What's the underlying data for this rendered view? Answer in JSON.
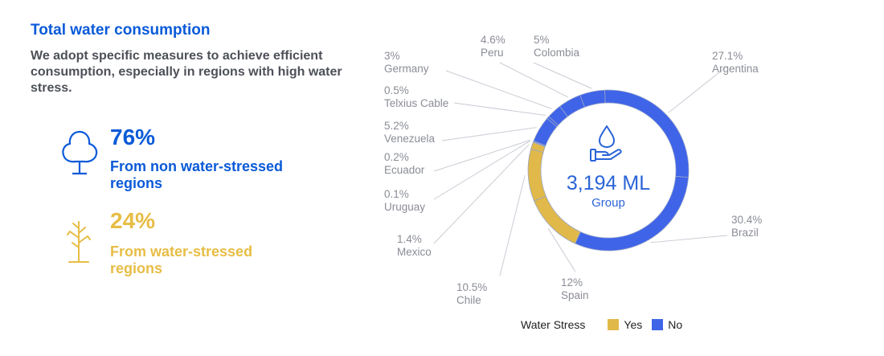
{
  "header": {
    "title": "Total water consumption",
    "subtitle": "We adopt specific measures to achieve efficient consumption, especially in regions with high water stress."
  },
  "stats": [
    {
      "value": "76%",
      "label": "From non water-stressed regions",
      "icon": "tree-icon",
      "color": "#0a5ad8"
    },
    {
      "value": "24%",
      "label": "From water-stressed regions",
      "icon": "dry-tree-icon",
      "color": "#e7bd45"
    }
  ],
  "chart_data": {
    "type": "donut",
    "center_value": "3,194 ML",
    "center_label": "Group",
    "center_icon": "water-drop-hand-icon",
    "series_colors": {
      "Yes": "#e0b94a",
      "No": "#3f64e8"
    },
    "slices": [
      {
        "country": "Brazil",
        "pct_label": "30.4%",
        "value": 30.4,
        "water_stress": "No"
      },
      {
        "country": "Spain",
        "pct_label": "12%",
        "value": 12,
        "water_stress": "Yes"
      },
      {
        "country": "Chile",
        "pct_label": "10.5%",
        "value": 10.5,
        "water_stress": "Yes"
      },
      {
        "country": "Mexico",
        "pct_label": "1.4%",
        "value": 1.4,
        "water_stress": "Yes"
      },
      {
        "country": "Uruguay",
        "pct_label": "0.1%",
        "value": 0.1,
        "water_stress": "No"
      },
      {
        "country": "Ecuador",
        "pct_label": "0.2%",
        "value": 0.2,
        "water_stress": "No"
      },
      {
        "country": "Venezuela",
        "pct_label": "5.2%",
        "value": 5.2,
        "water_stress": "No"
      },
      {
        "country": "Telxius Cable",
        "pct_label": "0.5%",
        "value": 0.5,
        "water_stress": "No"
      },
      {
        "country": "Germany",
        "pct_label": "3%",
        "value": 3,
        "water_stress": "No"
      },
      {
        "country": "Peru",
        "pct_label": "4.6%",
        "value": 4.6,
        "water_stress": "No"
      },
      {
        "country": "Colombia",
        "pct_label": "5%",
        "value": 5,
        "water_stress": "No"
      },
      {
        "country": "Argentina",
        "pct_label": "27.1%",
        "value": 27.1,
        "water_stress": "No"
      }
    ],
    "legend": {
      "title": "Water Stress",
      "items": [
        {
          "label": "Yes",
          "color": "#e0b94a"
        },
        {
          "label": "No",
          "color": "#3f64e8"
        }
      ]
    }
  }
}
